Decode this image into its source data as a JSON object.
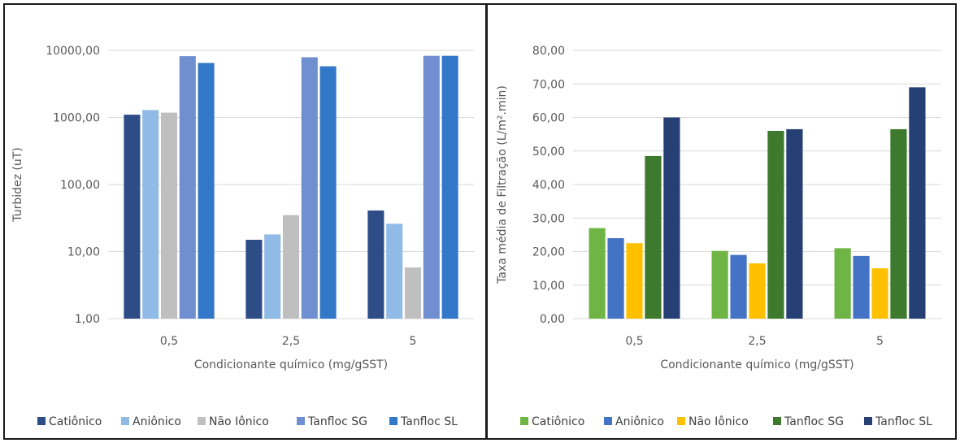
{
  "chart_data": [
    {
      "type": "bar",
      "yscale": "log",
      "categories": [
        "0,5",
        "2,5",
        "5"
      ],
      "ylabel": "Turbidez (uT)",
      "xlabel": "Condicionante químico (mg/gSST)",
      "ylim": [
        1,
        10000
      ],
      "yticks": [
        "1,00",
        "10,00",
        "100,00",
        "1000,00",
        "10000,00"
      ],
      "grid": true,
      "legend": "bottom",
      "series": [
        {
          "name": "Catiônico",
          "color": "#2e4d87",
          "values": [
            1100,
            15,
            41
          ]
        },
        {
          "name": "Aniônico",
          "color": "#8fbbe6",
          "values": [
            1290,
            18,
            26
          ]
        },
        {
          "name": "Não Iônico",
          "color": "#bfbfbf",
          "values": [
            1180,
            35,
            5.8
          ]
        },
        {
          "name": "Tanfloc SG",
          "color": "#6f8fd1",
          "values": [
            8200,
            7900,
            8300
          ]
        },
        {
          "name": "Tanfloc SL",
          "color": "#3377c8",
          "values": [
            6500,
            5800,
            8300
          ]
        }
      ]
    },
    {
      "type": "bar",
      "categories": [
        "0,5",
        "2,5",
        "5"
      ],
      "ylabel": "Taxa média de Filtração (L/m².min)",
      "xlabel": "Condicionante químico  (mg/gSST)",
      "ylim": [
        0,
        80
      ],
      "yticks": [
        "0,00",
        "10,00",
        "20,00",
        "30,00",
        "40,00",
        "50,00",
        "60,00",
        "70,00",
        "80,00"
      ],
      "grid": true,
      "legend": "bottom",
      "series": [
        {
          "name": "Catiônico",
          "color": "#6fb545",
          "values": [
            27.0,
            20.2,
            21.0
          ]
        },
        {
          "name": "Aniônico",
          "color": "#4472c4",
          "values": [
            24.0,
            19.0,
            18.7
          ]
        },
        {
          "name": "Não Iônico",
          "color": "#ffc000",
          "values": [
            22.5,
            16.5,
            15.0
          ]
        },
        {
          "name": "Tanfloc SG",
          "color": "#3e7a2e",
          "values": [
            48.5,
            56.0,
            56.5
          ]
        },
        {
          "name": "Tanfloc SL",
          "color": "#263f75",
          "values": [
            60.0,
            56.5,
            69.0
          ]
        }
      ]
    }
  ]
}
